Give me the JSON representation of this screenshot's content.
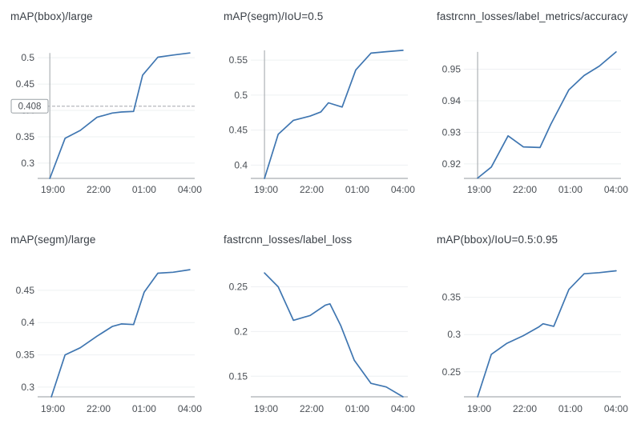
{
  "x_axis": {
    "tick_labels": [
      "19:00",
      "22:00",
      "01:00",
      "04:00"
    ],
    "tick_positions": [
      0,
      3,
      6,
      9
    ],
    "xlim": [
      -1.0,
      9.32
    ],
    "unit": "hours offset from 19:00"
  },
  "colors": {
    "line": "#3f76b1",
    "grid": "#eef0f2",
    "axis": "#b7bbbf",
    "crosshair": "#aeb2b6",
    "hline": "#bcbfc3",
    "title_text": "#383e45",
    "tick_text": "#4a4f55",
    "badge_border": "#9aa0a6",
    "badge_bg": "#ffffff"
  },
  "chart_data": [
    {
      "type": "line",
      "title": "mAP(bbox)/large",
      "row": 0,
      "y_ticks": [
        "0.3",
        "0.35",
        "0.4",
        "0.45",
        "0.5"
      ],
      "ylim": [
        0.271,
        0.526
      ],
      "grid": true,
      "legend": false,
      "x": [
        -0.2,
        0.8,
        1.8,
        2.9,
        3.9,
        4.5,
        5.3,
        5.9,
        6.9,
        7.9,
        9.0
      ],
      "y": [
        0.271,
        0.347,
        0.362,
        0.387,
        0.395,
        0.397,
        0.398,
        0.467,
        0.501,
        0.505,
        0.509
      ],
      "vline_x": -0.2,
      "hline": {
        "value": 0.408,
        "label": "0.408"
      }
    },
    {
      "type": "line",
      "title": "mAP(segm)/IoU=0.5",
      "row": 0,
      "y_ticks": [
        "0.4",
        "0.45",
        "0.5",
        "0.55"
      ],
      "ylim": [
        0.381,
        0.573
      ],
      "grid": true,
      "legend": false,
      "x": [
        -0.1,
        0.8,
        1.8,
        2.9,
        3.6,
        4.1,
        5.0,
        5.9,
        6.9,
        7.9,
        9.0
      ],
      "y": [
        0.381,
        0.444,
        0.464,
        0.47,
        0.476,
        0.489,
        0.483,
        0.536,
        0.56,
        0.562,
        0.564
      ],
      "vline_x": -0.1
    },
    {
      "type": "line",
      "title": "fastrcnn_losses/label_metrics/accuracy",
      "row": 0,
      "y_ticks": [
        "0.92",
        "0.93",
        "0.94",
        "0.95"
      ],
      "ylim": [
        0.9154,
        0.958
      ],
      "grid": true,
      "legend": false,
      "x": [
        -0.1,
        0.8,
        1.9,
        2.9,
        4.0,
        4.7,
        5.9,
        6.9,
        7.9,
        9.0
      ],
      "y": [
        0.9155,
        0.919,
        0.9289,
        0.9254,
        0.9252,
        0.9325,
        0.9435,
        0.948,
        0.951,
        0.9555
      ],
      "vline_x": -0.1
    },
    {
      "type": "line",
      "title": "mAP(segm)/large",
      "row": 1,
      "y_ticks": [
        "0.3",
        "0.35",
        "0.4",
        "0.45"
      ],
      "ylim": [
        0.285,
        0.497
      ],
      "grid": true,
      "legend": false,
      "x": [
        -0.1,
        0.8,
        1.8,
        2.9,
        3.9,
        4.5,
        5.3,
        6.0,
        6.9,
        7.9,
        9.0
      ],
      "y": [
        0.285,
        0.35,
        0.361,
        0.379,
        0.394,
        0.398,
        0.397,
        0.447,
        0.4765,
        0.478,
        0.482
      ]
    },
    {
      "type": "line",
      "title": "fastrcnn_losses/label_loss",
      "row": 1,
      "y_ticks": [
        "0.15",
        "0.2",
        "0.25"
      ],
      "ylim": [
        0.127,
        0.28
      ],
      "grid": true,
      "legend": false,
      "x": [
        -0.1,
        0.8,
        1.8,
        2.9,
        3.9,
        4.2,
        4.9,
        5.8,
        6.9,
        7.9,
        9.0
      ],
      "y": [
        0.2655,
        0.25,
        0.2125,
        0.218,
        0.2295,
        0.231,
        0.207,
        0.168,
        0.142,
        0.138,
        0.127
      ]
    },
    {
      "type": "line",
      "title": "mAP(bbox)/IoU=0.5:0.95",
      "row": 1,
      "y_ticks": [
        "0.25",
        "0.3",
        "0.35"
      ],
      "ylim": [
        0.2165,
        0.4
      ],
      "grid": true,
      "legend": false,
      "x": [
        -0.1,
        0.8,
        1.8,
        2.9,
        3.9,
        4.2,
        4.9,
        5.9,
        6.9,
        7.9,
        9.0
      ],
      "y": [
        0.2165,
        0.2735,
        0.288,
        0.2985,
        0.31,
        0.3145,
        0.311,
        0.3605,
        0.3815,
        0.383,
        0.3855
      ]
    }
  ]
}
